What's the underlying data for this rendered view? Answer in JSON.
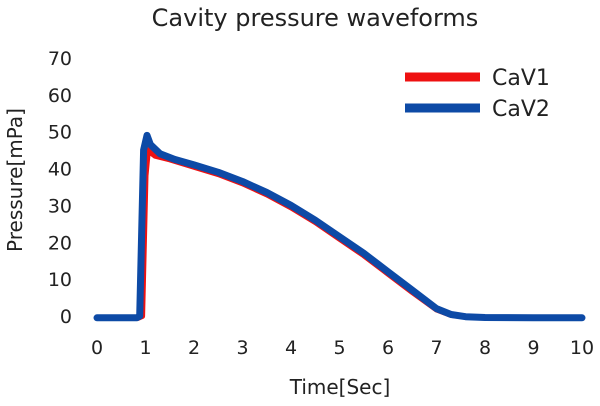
{
  "chart_data": {
    "type": "line",
    "title": "Cavity pressure waveforms",
    "xlabel": "Time[Sec]",
    "ylabel": "Pressure[mPa]",
    "xlim": [
      0,
      10
    ],
    "ylim": [
      0,
      70
    ],
    "x_ticks": [
      0,
      1,
      2,
      3,
      4,
      5,
      6,
      7,
      8,
      9,
      10
    ],
    "y_ticks": [
      0,
      10,
      20,
      30,
      40,
      50,
      60,
      70
    ],
    "grid": false,
    "legend_position": "top-right",
    "series": [
      {
        "name": "CaV1",
        "color": "#ee1111",
        "x": [
          0,
          0.85,
          0.93,
          1.0,
          1.05,
          1.2,
          1.5,
          2.0,
          2.5,
          3.0,
          3.5,
          4.0,
          4.5,
          5.0,
          5.5,
          6.0,
          6.5,
          7.0,
          7.3,
          7.6,
          8.0,
          9.0,
          10.0
        ],
        "y": [
          -0.5,
          -0.5,
          0,
          38,
          45,
          43.5,
          42.5,
          40.5,
          38.5,
          36,
          33,
          29.5,
          25.5,
          21,
          16.5,
          11.5,
          6.5,
          1.8,
          0.3,
          -0.2,
          -0.4,
          -0.5,
          -0.5
        ]
      },
      {
        "name": "CaV2",
        "color": "#0d4aa6",
        "x": [
          0,
          0.82,
          0.88,
          0.96,
          1.03,
          1.1,
          1.3,
          1.6,
          2.0,
          2.5,
          3.0,
          3.5,
          4.0,
          4.5,
          5.0,
          5.5,
          6.0,
          6.5,
          7.0,
          7.3,
          7.6,
          8.0,
          9.0,
          10.0
        ],
        "y": [
          -0.5,
          -0.5,
          0,
          45,
          49,
          46.5,
          44,
          42.5,
          41,
          39,
          36.5,
          33.5,
          30,
          26,
          21.5,
          17,
          12,
          7,
          2,
          0.4,
          -0.2,
          -0.4,
          -0.5,
          -0.5
        ]
      }
    ]
  }
}
